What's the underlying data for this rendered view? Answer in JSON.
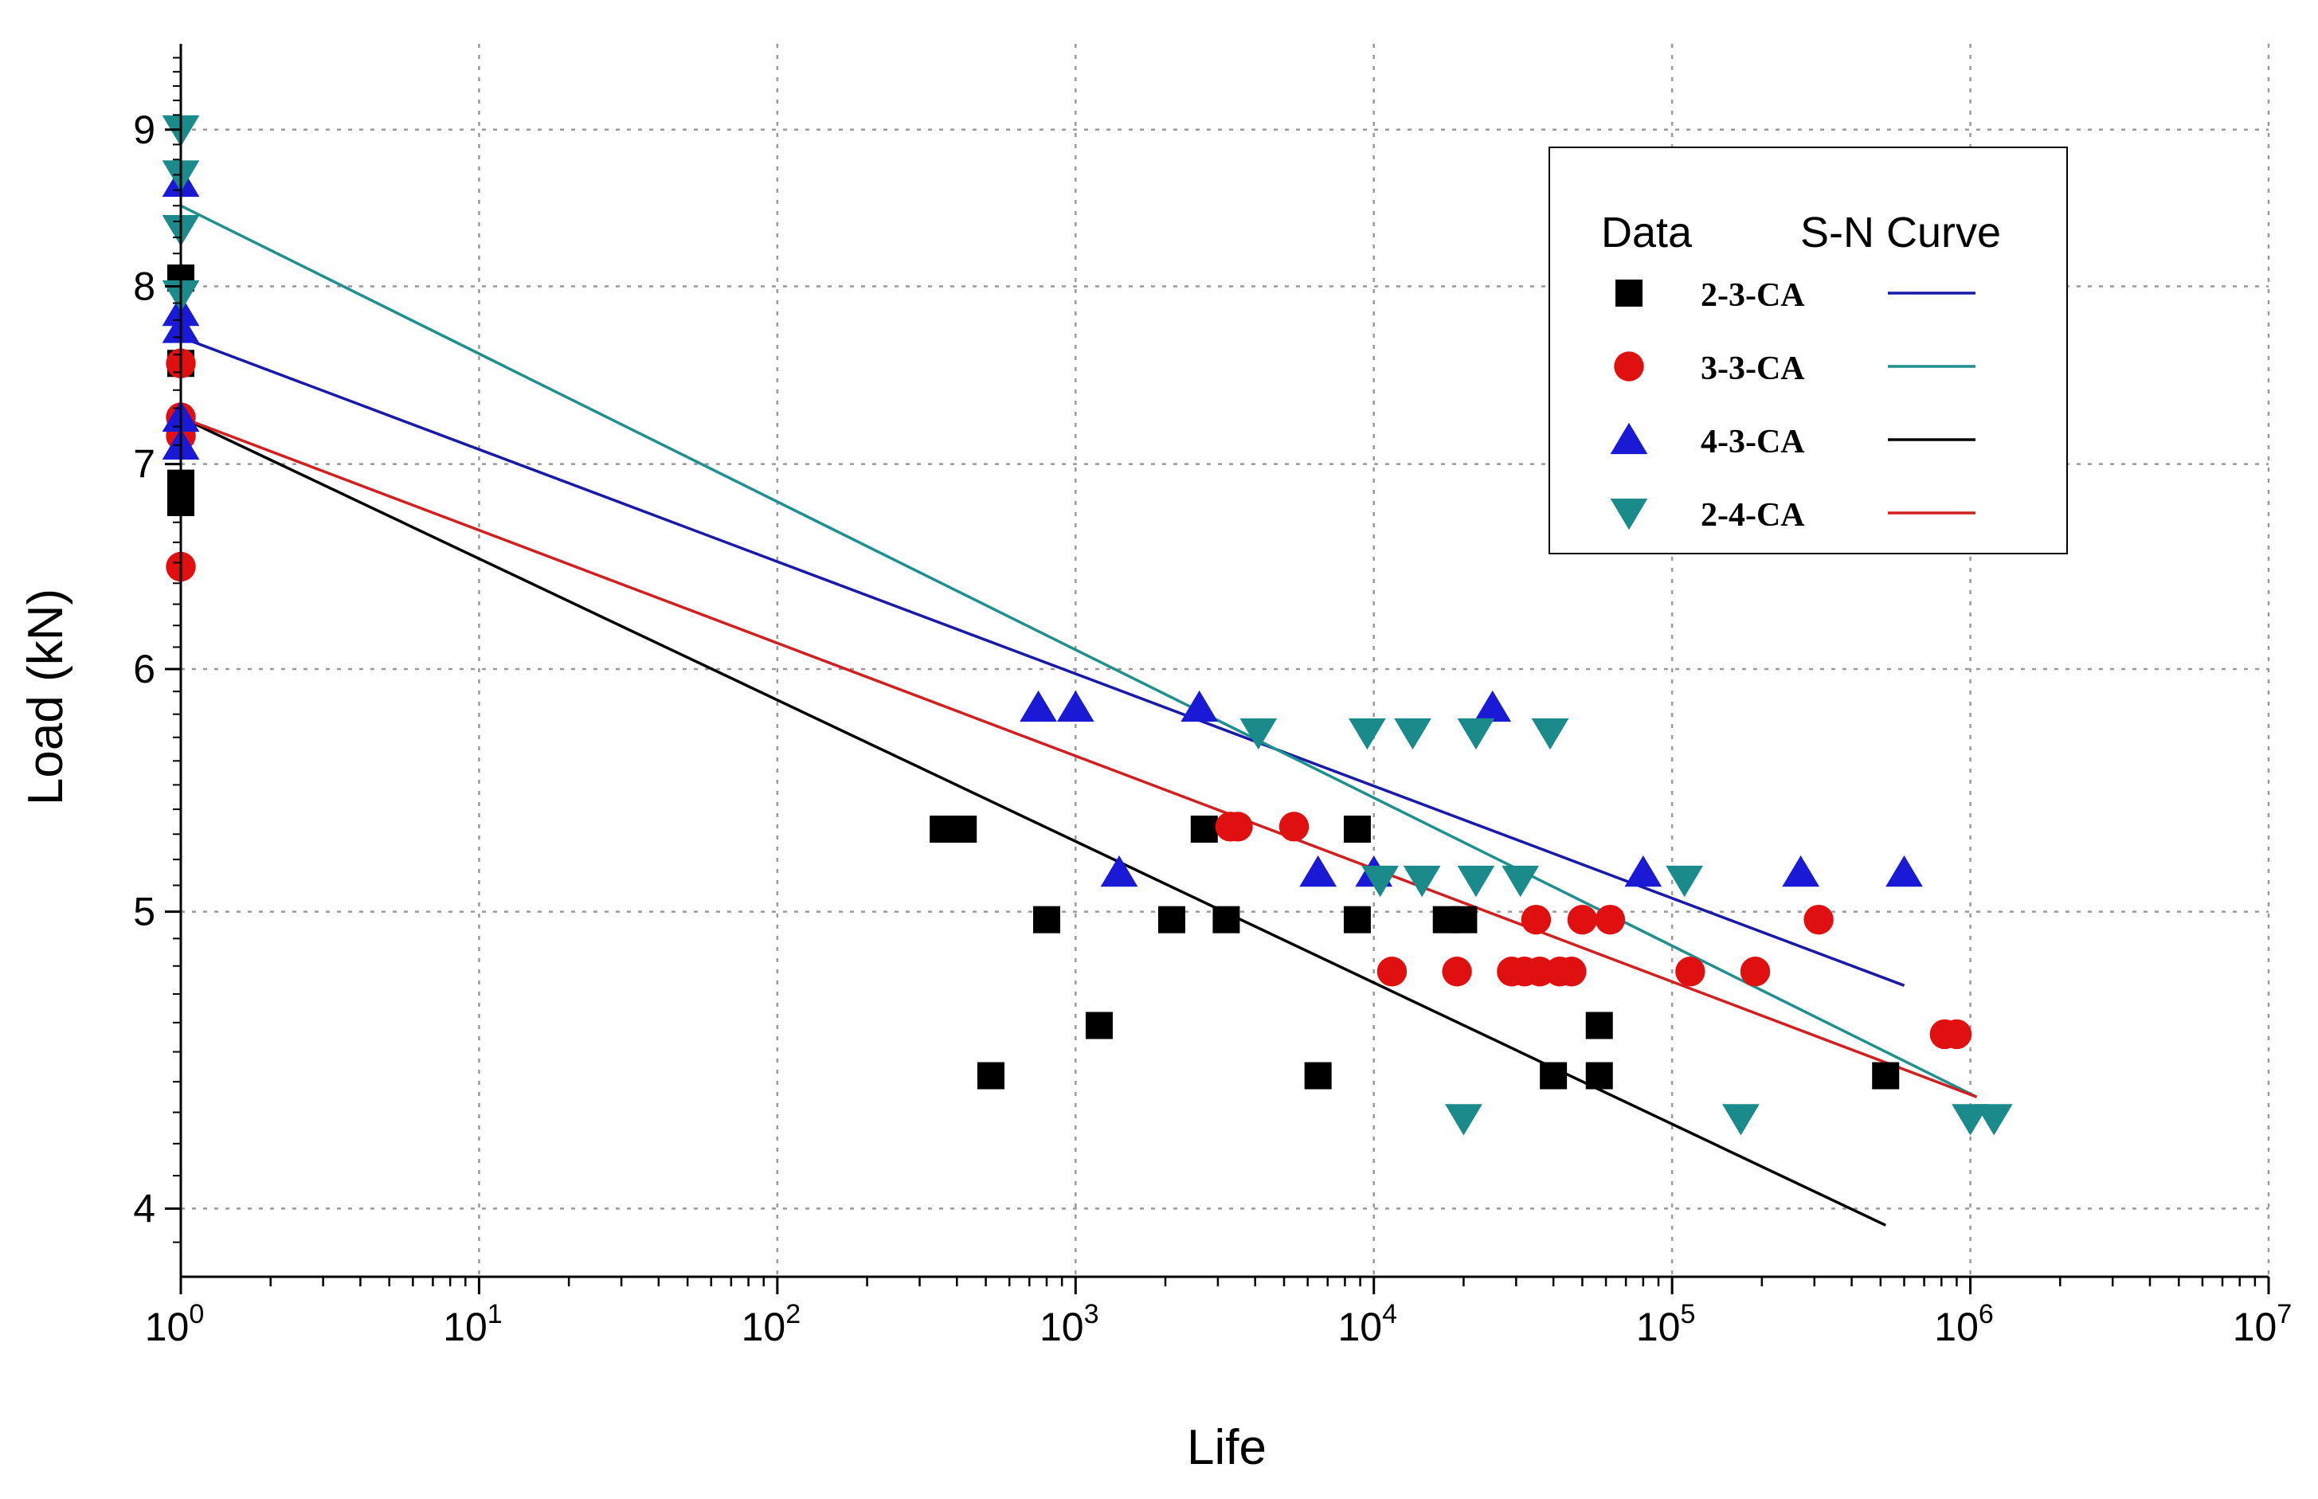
{
  "chart_data": {
    "type": "scatter",
    "title": "",
    "xlabel": "Life",
    "ylabel": "Load (kN)",
    "xscale": "log",
    "yscale": "log",
    "xlim": [
      1,
      10000000
    ],
    "ylim": [
      3.8,
      9.6
    ],
    "x_ticks": [
      {
        "value": 1,
        "base": "10",
        "exp": "0"
      },
      {
        "value": 10,
        "base": "10",
        "exp": "1"
      },
      {
        "value": 100,
        "base": "10",
        "exp": "2"
      },
      {
        "value": 1000,
        "base": "10",
        "exp": "3"
      },
      {
        "value": 10000,
        "base": "10",
        "exp": "4"
      },
      {
        "value": 100000,
        "base": "10",
        "exp": "5"
      },
      {
        "value": 1000000,
        "base": "10",
        "exp": "6"
      },
      {
        "value": 10000000,
        "base": "10",
        "exp": "7"
      }
    ],
    "y_ticks": [
      {
        "value": 4,
        "label": "4"
      },
      {
        "value": 5,
        "label": "5"
      },
      {
        "value": 6,
        "label": "6"
      },
      {
        "value": 7,
        "label": "7"
      },
      {
        "value": 8,
        "label": "8"
      },
      {
        "value": 9,
        "label": "9"
      }
    ],
    "grid": true,
    "legend": {
      "placement": "top-right",
      "data_header": "Data",
      "curve_header": "S-N Curve"
    },
    "series": [
      {
        "name": "2-3-CA",
        "marker": "square",
        "color": "#000000",
        "curve_color": "#1a1aa8",
        "points": [
          [
            1,
            8.05
          ],
          [
            1,
            7.55
          ],
          [
            1,
            6.9
          ],
          [
            1,
            6.8
          ],
          [
            360,
            5.32
          ],
          [
            420,
            5.32
          ],
          [
            2700,
            5.32
          ],
          [
            8800,
            5.32
          ],
          [
            800,
            4.97
          ],
          [
            2100,
            4.97
          ],
          [
            3200,
            4.97
          ],
          [
            8800,
            4.97
          ],
          [
            17500,
            4.97
          ],
          [
            20000,
            4.97
          ],
          [
            1200,
            4.59
          ],
          [
            57000,
            4.59
          ],
          [
            520,
            4.42
          ],
          [
            6500,
            4.42
          ],
          [
            40000,
            4.42
          ],
          [
            57000,
            4.42
          ],
          [
            520000,
            4.42
          ]
        ],
        "curve": [
          [
            1,
            7.7
          ],
          [
            600000,
            4.73
          ]
        ]
      },
      {
        "name": "3-3-CA",
        "marker": "circle",
        "color": "#e01010",
        "curve_color": "#1f8f8f",
        "points": [
          [
            1,
            7.55
          ],
          [
            1,
            7.25
          ],
          [
            1,
            7.15
          ],
          [
            1,
            6.48
          ],
          [
            3300,
            5.33
          ],
          [
            3500,
            5.33
          ],
          [
            5400,
            5.33
          ],
          [
            35000,
            4.97
          ],
          [
            50000,
            4.97
          ],
          [
            62000,
            4.97
          ],
          [
            310000,
            4.97
          ],
          [
            11500,
            4.78
          ],
          [
            19000,
            4.78
          ],
          [
            29000,
            4.78
          ],
          [
            32000,
            4.78
          ],
          [
            36000,
            4.78
          ],
          [
            42000,
            4.78
          ],
          [
            46000,
            4.78
          ],
          [
            115000,
            4.78
          ],
          [
            190000,
            4.78
          ],
          [
            820000,
            4.56
          ],
          [
            900000,
            4.56
          ]
        ],
        "curve": [
          [
            1,
            8.5
          ],
          [
            1050000,
            4.35
          ]
        ]
      },
      {
        "name": "4-3-CA",
        "marker": "triangle-up",
        "color": "#1a1ad6",
        "curve_color": "#000000",
        "points": [
          [
            1,
            8.65
          ],
          [
            1,
            7.85
          ],
          [
            1,
            7.75
          ],
          [
            1,
            7.25
          ],
          [
            1,
            7.1
          ],
          [
            750,
            5.83
          ],
          [
            1000,
            5.83
          ],
          [
            2600,
            5.83
          ],
          [
            25000,
            5.83
          ],
          [
            1400,
            5.15
          ],
          [
            6500,
            5.15
          ],
          [
            10000,
            5.15
          ],
          [
            80000,
            5.15
          ],
          [
            270000,
            5.15
          ],
          [
            600000,
            5.15
          ]
        ],
        "curve": [
          [
            1,
            7.25
          ],
          [
            520000,
            3.95
          ]
        ]
      },
      {
        "name": "2-4-CA",
        "marker": "triangle-down",
        "color": "#1a8a8a",
        "curve_color": "#d02020",
        "points": [
          [
            1,
            9.0
          ],
          [
            1,
            8.7
          ],
          [
            1,
            8.35
          ],
          [
            1,
            7.95
          ],
          [
            4100,
            5.72
          ],
          [
            9500,
            5.72
          ],
          [
            13500,
            5.72
          ],
          [
            22000,
            5.72
          ],
          [
            39000,
            5.72
          ],
          [
            10500,
            5.12
          ],
          [
            14500,
            5.12
          ],
          [
            22000,
            5.12
          ],
          [
            31000,
            5.12
          ],
          [
            110000,
            5.12
          ],
          [
            20000,
            4.28
          ],
          [
            170000,
            4.28
          ],
          [
            1000000,
            4.28
          ],
          [
            1200000,
            4.28
          ]
        ],
        "curve": [
          [
            1,
            7.25
          ],
          [
            1050000,
            4.35
          ]
        ]
      }
    ]
  }
}
